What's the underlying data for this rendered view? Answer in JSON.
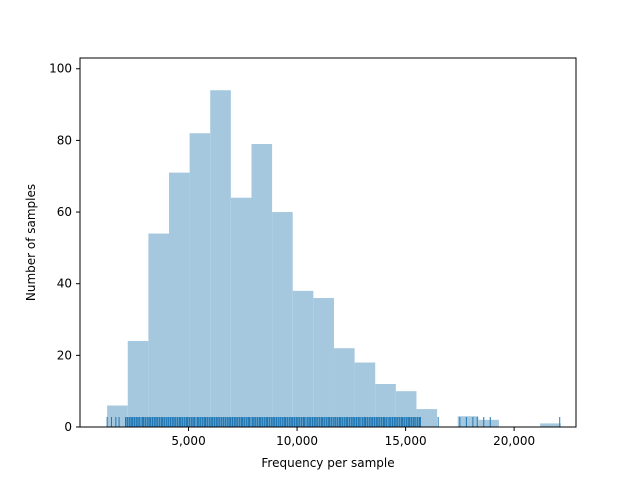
{
  "chart_data": {
    "type": "bar",
    "title": "",
    "xlabel": "Frequency per sample",
    "ylabel": "Number of samples",
    "xlim": [
      0,
      22850
    ],
    "ylim": [
      0,
      103
    ],
    "xticks": [
      5000,
      10000,
      15000,
      20000
    ],
    "xtick_labels": [
      "5,000",
      "10,000",
      "15,000",
      "20,000"
    ],
    "yticks": [
      0,
      20,
      40,
      60,
      80,
      100
    ],
    "ytick_labels": [
      "0",
      "20",
      "40",
      "60",
      "80",
      "100"
    ],
    "grid": false,
    "bin_width": 950,
    "bins": [
      {
        "x0": 1250,
        "x1": 2200,
        "count": 6
      },
      {
        "x0": 2200,
        "x1": 3150,
        "count": 24
      },
      {
        "x0": 3150,
        "x1": 4100,
        "count": 54
      },
      {
        "x0": 4100,
        "x1": 5050,
        "count": 71
      },
      {
        "x0": 5050,
        "x1": 6000,
        "count": 82
      },
      {
        "x0": 6000,
        "x1": 6950,
        "count": 94
      },
      {
        "x0": 6950,
        "x1": 7900,
        "count": 64
      },
      {
        "x0": 7900,
        "x1": 8850,
        "count": 79
      },
      {
        "x0": 8850,
        "x1": 9800,
        "count": 60
      },
      {
        "x0": 9800,
        "x1": 10750,
        "count": 38
      },
      {
        "x0": 10750,
        "x1": 11700,
        "count": 36
      },
      {
        "x0": 11700,
        "x1": 12650,
        "count": 22
      },
      {
        "x0": 12650,
        "x1": 13600,
        "count": 18
      },
      {
        "x0": 13600,
        "x1": 14550,
        "count": 12
      },
      {
        "x0": 14550,
        "x1": 15500,
        "count": 10
      },
      {
        "x0": 15500,
        "x1": 16450,
        "count": 5
      },
      {
        "x0": 16450,
        "x1": 17400,
        "count": 0
      },
      {
        "x0": 17400,
        "x1": 18350,
        "count": 3
      },
      {
        "x0": 18350,
        "x1": 19300,
        "count": 2
      },
      {
        "x0": 19300,
        "x1": 20250,
        "count": 0
      },
      {
        "x0": 20250,
        "x1": 21200,
        "count": 0
      },
      {
        "x0": 21200,
        "x1": 22150,
        "count": 1
      }
    ],
    "rug_dense_range": [
      2100,
      15700
    ],
    "rug_sparse_x": [
      1250,
      1450,
      1650,
      1800,
      16500,
      17500,
      17800,
      18100,
      18300,
      18600,
      18900,
      22100
    ],
    "colors": {
      "bars": "#a5c8df",
      "rug": "#1f77b4",
      "axes": "#000000"
    }
  }
}
